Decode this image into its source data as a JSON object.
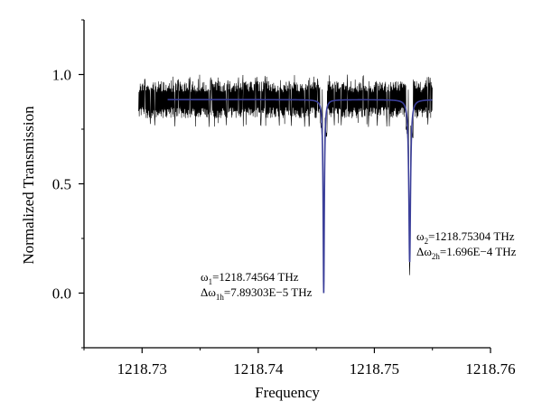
{
  "chart_data": {
    "type": "line",
    "title": "",
    "xlabel": "Frequency",
    "ylabel": "Normalized Transmission",
    "xlim": [
      1218.725,
      1218.76
    ],
    "ylim": [
      -0.25,
      1.25
    ],
    "x_ticks": [
      1218.73,
      1218.74,
      1218.75,
      1218.76
    ],
    "x_tick_labels": [
      "1218.73",
      "1218.74",
      "1218.75",
      "1218.76"
    ],
    "y_ticks": [
      0.0,
      0.5,
      1.0
    ],
    "y_tick_labels": [
      "0.0",
      "0.5",
      "1.0"
    ],
    "grid": false,
    "legend": "none",
    "series": [
      {
        "kind": "measured-noisy",
        "color": "#000000",
        "x_range": [
          1218.7297,
          1218.755
        ],
        "baseline_band": [
          0.8,
          0.97
        ],
        "dips": [
          {
            "center": 1218.74564,
            "min": -0.02
          },
          {
            "center": 1218.75304,
            "min": 0.0
          }
        ]
      },
      {
        "kind": "lorentzian-fit",
        "color": "#3b3f9a",
        "x_range": [
          1218.7322,
          1218.755
        ],
        "baseline": 0.885,
        "dips": [
          {
            "center": 1218.74564,
            "width": 7.89303e-05,
            "min": 0.0
          },
          {
            "center": 1218.75304,
            "width": 0.0001696,
            "min": 0.14
          }
        ]
      }
    ],
    "annotations": [
      {
        "line1_symbol": "ω",
        "line1_sub": "1",
        "line1_text": "=1218.74564 THz",
        "line2_symbol": "Δω",
        "line2_sub": "1h",
        "line2_text": "=7.89303E−5 THz"
      },
      {
        "line1_symbol": "ω",
        "line1_sub": "2",
        "line1_text": "=1218.75304 THz",
        "line2_symbol": "Δω",
        "line2_sub": "2h",
        "line2_text": "=1.696E−4 THz"
      }
    ]
  }
}
